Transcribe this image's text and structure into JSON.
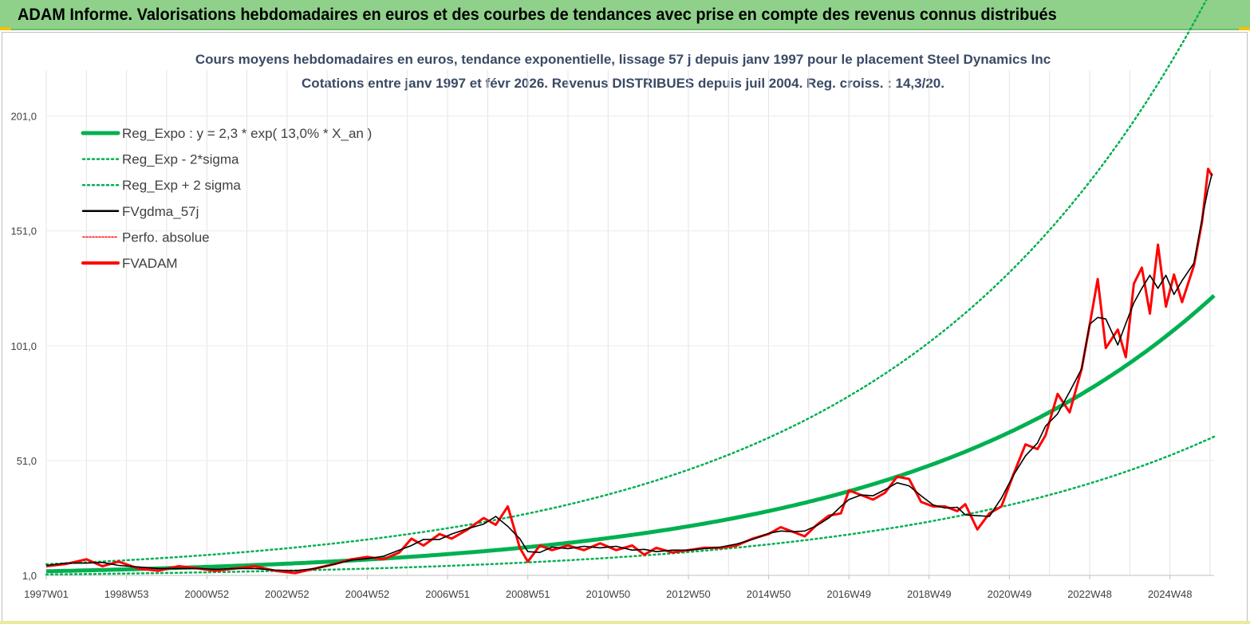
{
  "header": {
    "title": "ADAM Informe. Valorisations hebdomadaires en euros et des courbes de tendances avec prise en compte des revenus connus distribués"
  },
  "colors": {
    "header_bg": "#8fd18a",
    "trend": "#00b050",
    "smooth": "#000000",
    "price": "#ff0000",
    "title": "#3a4a66"
  },
  "chart_data": {
    "type": "line",
    "title": "Cours moyens hebdomadaires en euros, tendance exponentielle, lissage 57 j depuis janv 1997 pour le placement Steel Dynamics Inc",
    "subtitle": "Cotations entre janv 1997 et févr 2026. Revenus DISTRIBUES depuis juil 2004. Reg. croiss. : 14,3/20.",
    "xlabel": "",
    "ylabel": "",
    "xlim": [
      1997.0,
      2026.1
    ],
    "ylim": [
      1.0,
      221.0
    ],
    "y_ticks": [
      "1,0",
      "51,0",
      "101,0",
      "151,0",
      "201,0"
    ],
    "y_tick_values": [
      1,
      51,
      101,
      151,
      201
    ],
    "x_ticks": [
      "1997W01",
      "1998W53",
      "2000W52",
      "2002W52",
      "2004W52",
      "2006W51",
      "2008W51",
      "2010W50",
      "2012W50",
      "2014W50",
      "2016W49",
      "2018W49",
      "2020W49",
      "2022W48",
      "2024W48"
    ],
    "x_tick_values": [
      1997.0,
      1999.0,
      2001.0,
      2003.0,
      2005.0,
      2007.0,
      2009.0,
      2011.0,
      2013.0,
      2015.0,
      2017.0,
      2019.0,
      2021.0,
      2023.0,
      2025.0
    ],
    "grid": "vertical",
    "legend_position": "top-left",
    "trend": {
      "a": 2.3,
      "rate": 0.13
    },
    "series": [
      {
        "name": "Reg_Expo : y = 2,3 * exp( 13,0% *  X_an )",
        "style": "solid-thick",
        "color": "#00b050"
      },
      {
        "name": "Reg_Exp - 2*sigma",
        "style": "dotted",
        "color": "#00b050"
      },
      {
        "name": "Reg_Exp + 2 sigma",
        "style": "dotted",
        "color": "#00b050"
      },
      {
        "name": "FVgdma_57j",
        "style": "solid",
        "color": "#000000"
      },
      {
        "name": "Perfo. absolue",
        "style": "dotted-thin",
        "color": "#ff0000"
      },
      {
        "name": "FVADAM",
        "style": "solid-thick",
        "color": "#ff0000",
        "points": [
          [
            1997.0,
            5
          ],
          [
            1997.5,
            6
          ],
          [
            1998.0,
            8
          ],
          [
            1998.4,
            5
          ],
          [
            1998.8,
            7
          ],
          [
            1999.3,
            4
          ],
          [
            1999.8,
            3
          ],
          [
            2000.3,
            5
          ],
          [
            2000.8,
            4
          ],
          [
            2001.2,
            3
          ],
          [
            2001.7,
            4
          ],
          [
            2002.2,
            5
          ],
          [
            2002.7,
            3
          ],
          [
            2003.2,
            2
          ],
          [
            2003.7,
            4
          ],
          [
            2004.2,
            6
          ],
          [
            2004.6,
            8
          ],
          [
            2005.0,
            9
          ],
          [
            2005.4,
            8
          ],
          [
            2005.8,
            11
          ],
          [
            2006.1,
            17
          ],
          [
            2006.4,
            14
          ],
          [
            2006.8,
            19
          ],
          [
            2007.1,
            17
          ],
          [
            2007.5,
            21
          ],
          [
            2007.9,
            26
          ],
          [
            2008.2,
            23
          ],
          [
            2008.5,
            31
          ],
          [
            2008.8,
            13
          ],
          [
            2009.0,
            7
          ],
          [
            2009.3,
            14
          ],
          [
            2009.6,
            12
          ],
          [
            2010.0,
            14
          ],
          [
            2010.4,
            12
          ],
          [
            2010.8,
            15
          ],
          [
            2011.2,
            12
          ],
          [
            2011.6,
            14
          ],
          [
            2011.9,
            10
          ],
          [
            2012.2,
            13
          ],
          [
            2012.6,
            11
          ],
          [
            2013.0,
            12
          ],
          [
            2013.4,
            13
          ],
          [
            2013.8,
            13
          ],
          [
            2014.2,
            14
          ],
          [
            2014.6,
            17
          ],
          [
            2015.0,
            19
          ],
          [
            2015.3,
            22
          ],
          [
            2015.6,
            20
          ],
          [
            2015.9,
            18
          ],
          [
            2016.2,
            23
          ],
          [
            2016.5,
            27
          ],
          [
            2016.8,
            28
          ],
          [
            2017.0,
            38
          ],
          [
            2017.3,
            36
          ],
          [
            2017.6,
            34
          ],
          [
            2017.9,
            37
          ],
          [
            2018.2,
            44
          ],
          [
            2018.5,
            43
          ],
          [
            2018.8,
            33
          ],
          [
            2019.1,
            31
          ],
          [
            2019.4,
            31
          ],
          [
            2019.7,
            29
          ],
          [
            2019.9,
            32
          ],
          [
            2020.2,
            21
          ],
          [
            2020.5,
            28
          ],
          [
            2020.8,
            31
          ],
          [
            2021.1,
            45
          ],
          [
            2021.4,
            58
          ],
          [
            2021.7,
            56
          ],
          [
            2021.9,
            62
          ],
          [
            2022.2,
            80
          ],
          [
            2022.5,
            72
          ],
          [
            2022.8,
            91
          ],
          [
            2023.0,
            110
          ],
          [
            2023.2,
            130
          ],
          [
            2023.4,
            100
          ],
          [
            2023.7,
            108
          ],
          [
            2023.9,
            96
          ],
          [
            2024.1,
            128
          ],
          [
            2024.3,
            135
          ],
          [
            2024.5,
            115
          ],
          [
            2024.7,
            145
          ],
          [
            2024.9,
            118
          ],
          [
            2025.1,
            132
          ],
          [
            2025.3,
            120
          ],
          [
            2025.6,
            136
          ],
          [
            2025.8,
            155
          ],
          [
            2025.95,
            178
          ],
          [
            2026.05,
            175
          ]
        ]
      }
    ]
  }
}
